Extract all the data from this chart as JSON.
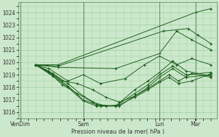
{
  "xlabel": "Pression niveau de la mer( hPa )",
  "bg_color": "#cce8cc",
  "plot_bg_color": "#cce8cc",
  "grid_color": "#99cc99",
  "line_color": "#1a5c1a",
  "ylim": [
    1015.5,
    1024.8
  ],
  "yticks": [
    1016,
    1017,
    1018,
    1019,
    1020,
    1021,
    1022,
    1023,
    1024
  ],
  "xtick_labels": [
    "VenDim",
    "",
    "Sam",
    "",
    "Lun",
    "Mar"
  ],
  "xtick_positions": [
    0.0,
    0.17,
    0.33,
    0.55,
    0.73,
    0.92
  ],
  "vlines": [
    0.0,
    0.33,
    0.73,
    0.92
  ],
  "series": [
    {
      "x": [
        0.08,
        0.2,
        0.92,
        1.0
      ],
      "y": [
        1019.8,
        1019.8,
        1024.0,
        1024.3
      ]
    },
    {
      "x": [
        0.08,
        0.2,
        0.75,
        0.88,
        0.93,
        1.0
      ],
      "y": [
        1019.8,
        1019.7,
        1022.5,
        1022.7,
        1022.2,
        1021.5
      ]
    },
    {
      "x": [
        0.08,
        0.2,
        0.5,
        0.73,
        0.82,
        0.9,
        1.0
      ],
      "y": [
        1019.8,
        1019.6,
        1019.5,
        1020.7,
        1022.5,
        1021.8,
        1021.0
      ]
    },
    {
      "x": [
        0.08,
        0.15,
        0.25,
        0.33,
        0.42,
        0.55,
        0.65,
        0.73,
        0.82,
        0.9,
        1.0
      ],
      "y": [
        1019.8,
        1019.5,
        1018.5,
        1019.0,
        1018.3,
        1018.7,
        1019.8,
        1020.5,
        1019.8,
        1020.3,
        1019.8
      ]
    },
    {
      "x": [
        0.08,
        0.15,
        0.22,
        0.3,
        0.38,
        0.45,
        0.52,
        0.6,
        0.67,
        0.73,
        0.78,
        0.83,
        0.9,
        1.0
      ],
      "y": [
        1019.8,
        1019.3,
        1018.5,
        1018.3,
        1017.8,
        1017.2,
        1016.8,
        1017.3,
        1017.9,
        1018.5,
        1019.0,
        1018.5,
        1019.1,
        1018.8
      ]
    },
    {
      "x": [
        0.08,
        0.15,
        0.22,
        0.3,
        0.38,
        0.45,
        0.52,
        0.6,
        0.67,
        0.73,
        0.78,
        0.83,
        0.9,
        1.0
      ],
      "y": [
        1019.8,
        1019.2,
        1018.2,
        1017.5,
        1016.8,
        1016.5,
        1016.6,
        1017.2,
        1017.8,
        1018.4,
        1018.8,
        1018.3,
        1018.5,
        1019.1
      ]
    },
    {
      "x": [
        0.08,
        0.17,
        0.25,
        0.33,
        0.42,
        0.52,
        0.6,
        0.67,
        0.73,
        0.8,
        0.87,
        1.0
      ],
      "y": [
        1019.8,
        1019.1,
        1018.3,
        1017.3,
        1016.5,
        1016.5,
        1017.3,
        1018.0,
        1018.8,
        1019.5,
        1018.8,
        1019.0
      ]
    },
    {
      "x": [
        0.08,
        0.17,
        0.25,
        0.33,
        0.4,
        0.5,
        0.6,
        0.67,
        0.73,
        0.8,
        0.87,
        1.0
      ],
      "y": [
        1019.8,
        1019.0,
        1018.1,
        1017.0,
        1016.6,
        1016.5,
        1017.5,
        1018.2,
        1019.0,
        1019.7,
        1019.0,
        1019.2
      ]
    },
    {
      "x": [
        0.08,
        0.17,
        0.25,
        0.33,
        0.4,
        0.5,
        0.6,
        0.67,
        0.73,
        0.8,
        0.87,
        1.0
      ],
      "y": [
        1019.8,
        1018.9,
        1018.0,
        1016.9,
        1016.5,
        1016.5,
        1017.8,
        1018.5,
        1019.2,
        1020.1,
        1019.3,
        1018.9
      ]
    }
  ]
}
